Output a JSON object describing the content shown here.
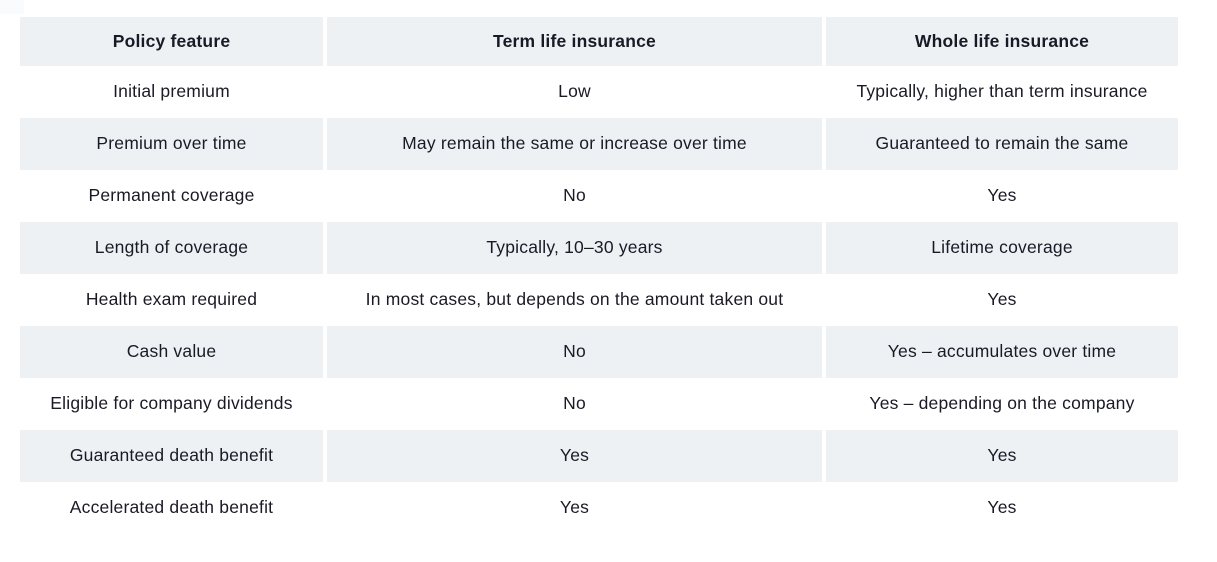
{
  "page": {
    "background": "#ffffff"
  },
  "colors": {
    "row_shade": "#edf1f4",
    "text": "#1a1a27"
  },
  "table": {
    "columns": [
      {
        "id": "feature",
        "label": "Policy feature"
      },
      {
        "id": "term",
        "label": "Term life insurance"
      },
      {
        "id": "whole",
        "label": "Whole life insurance"
      }
    ],
    "rows": [
      {
        "cells": [
          "Initial premium",
          "Low",
          "Typically, higher than term insurance"
        ]
      },
      {
        "cells": [
          "Premium over time",
          "May remain the same or increase over time",
          "Guaranteed to remain the same"
        ]
      },
      {
        "cells": [
          "Permanent coverage",
          "No",
          "Yes"
        ]
      },
      {
        "cells": [
          "Length of coverage",
          "Typically, 10–30 years",
          "Lifetime coverage"
        ]
      },
      {
        "cells": [
          "Health exam required",
          "In most cases, but depends on the amount taken out",
          "Yes"
        ]
      },
      {
        "cells": [
          "Cash value",
          "No",
          "Yes – accumulates over time"
        ]
      },
      {
        "cells": [
          "Eligible for company dividends",
          "No",
          "Yes – depending on the company"
        ]
      },
      {
        "cells": [
          "Guaranteed death benefit",
          "Yes",
          "Yes"
        ]
      },
      {
        "cells": [
          "Accelerated death benefit",
          "Yes",
          "Yes"
        ]
      }
    ]
  }
}
